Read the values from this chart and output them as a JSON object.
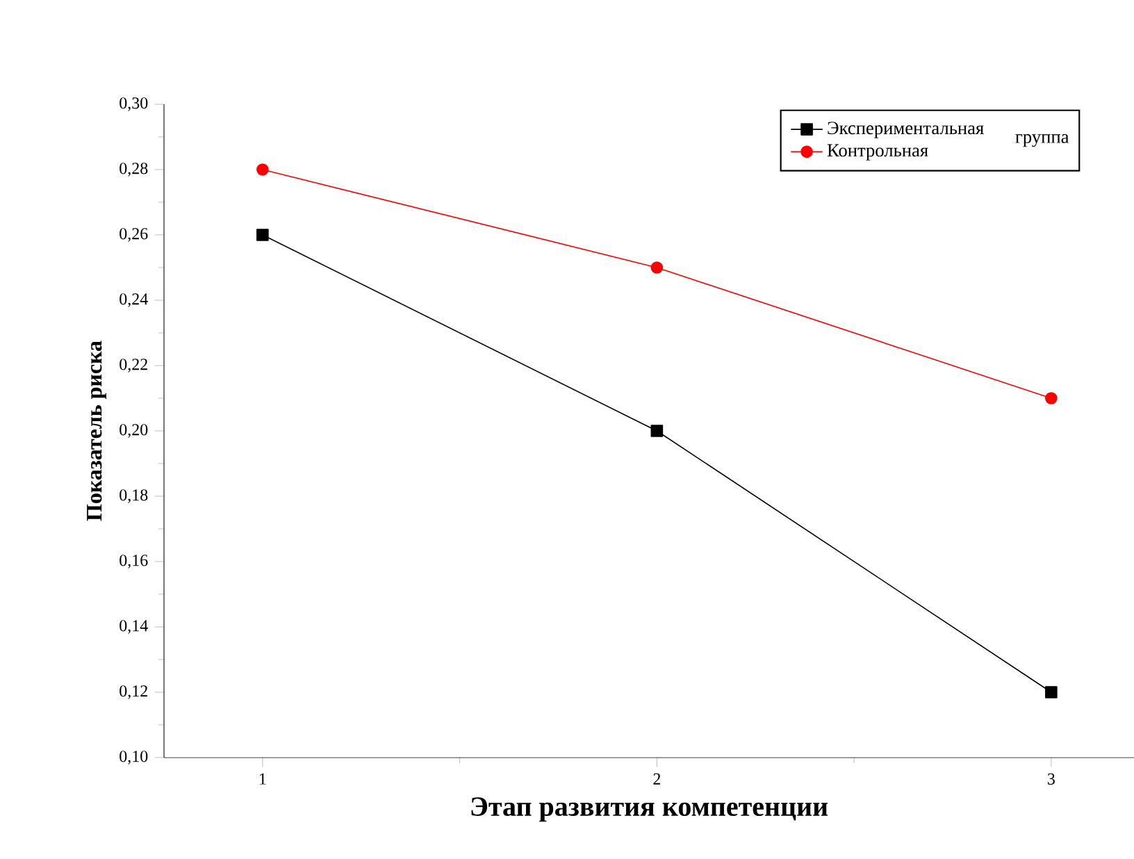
{
  "chart_data": {
    "type": "line",
    "xlabel": "Этап развития компетенции",
    "ylabel": "Показатель риска",
    "legend_title": "группа",
    "x": [
      1,
      2,
      3
    ],
    "series": [
      {
        "name": "Экспериментальная",
        "color": "#000000",
        "marker": "square",
        "values": [
          0.26,
          0.2,
          0.12
        ]
      },
      {
        "name": "Контрольная",
        "color": "#ff0000",
        "marker": "circle",
        "values": [
          0.28,
          0.25,
          0.21
        ]
      }
    ],
    "xlim": [
      0.75,
      3.21
    ],
    "xticks": [
      1,
      2,
      3
    ],
    "ylim": [
      0.1,
      0.3
    ],
    "yticks": [
      {
        "value": 0.1,
        "label": "0,10"
      },
      {
        "value": 0.12,
        "label": "0,12"
      },
      {
        "value": 0.14,
        "label": "0,14"
      },
      {
        "value": 0.16,
        "label": "0,16"
      },
      {
        "value": 0.18,
        "label": "0,18"
      },
      {
        "value": 0.2,
        "label": "0,20"
      },
      {
        "value": 0.22,
        "label": "0,22"
      },
      {
        "value": 0.24,
        "label": "0,24"
      },
      {
        "value": 0.26,
        "label": "0,26"
      },
      {
        "value": 0.28,
        "label": "0,28"
      },
      {
        "value": 0.3,
        "label": "0,30"
      }
    ],
    "grid": false,
    "legend": "top right",
    "line_style": "solid"
  }
}
